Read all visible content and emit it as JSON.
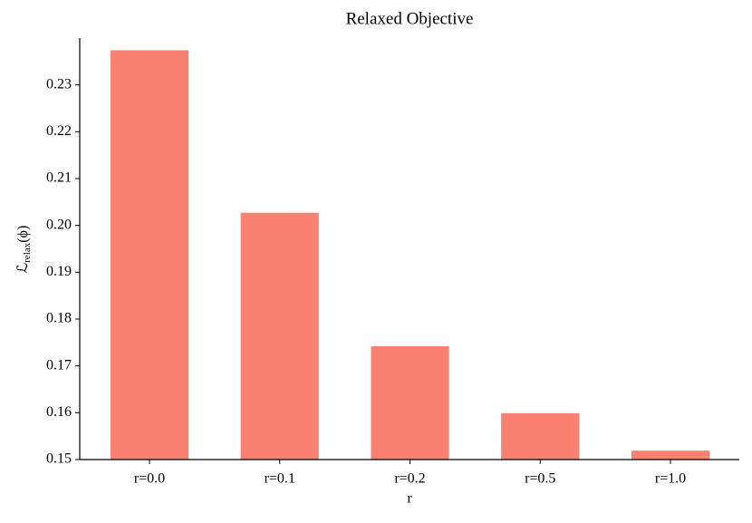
{
  "chart_data": {
    "type": "bar",
    "title": "Relaxed Objective",
    "x_label": "r",
    "y_label": {
      "main": "ℒ",
      "sub": "relax",
      "tail": "(ϕ)"
    },
    "categories": [
      "r=0.0",
      "r=0.1",
      "r=0.2",
      "r=0.5",
      "r=1.0"
    ],
    "values": [
      0.2374,
      0.2027,
      0.1742,
      0.1599,
      0.1519
    ],
    "color": "#fa8072",
    "ylim": [
      0.15,
      0.24
    ],
    "yticks": [
      0.15,
      0.16,
      0.17,
      0.18,
      0.19,
      {
        "value": 0.2,
        "label": "0.20"
      },
      0.21,
      0.22,
      0.23
    ],
    "grid": false
  }
}
